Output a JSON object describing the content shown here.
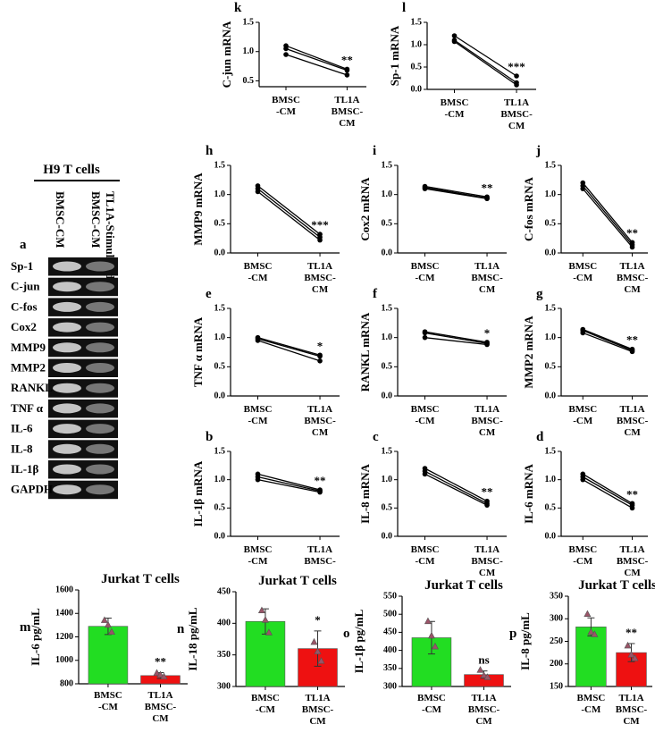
{
  "gel": {
    "panel": "a",
    "header": "H9 T cells",
    "columns": [
      [
        "BMSC-CM"
      ],
      [
        "TL1A-Stimulated",
        "BMSC-CM"
      ]
    ],
    "rows": [
      "Sp-1",
      "C-jun",
      "C-fos",
      "Cox2",
      "MMP9",
      "MMP2",
      "RANKL",
      "TNF α",
      "IL-6",
      "IL-8",
      "IL-1β",
      "GAPDH"
    ]
  },
  "chart_data": [
    {
      "type": "line",
      "panel": "k",
      "ylabel": "C-jun mRNA",
      "categories": [
        [
          "BMSC",
          "-CM"
        ],
        [
          "TL1A",
          "BMSC-",
          "CM"
        ]
      ],
      "series": [
        {
          "color": "#000000",
          "values": [
            1.1,
            0.7
          ]
        },
        {
          "color": "#000000",
          "values": [
            1.05,
            0.68
          ]
        },
        {
          "color": "#000000",
          "values": [
            0.95,
            0.6
          ]
        }
      ],
      "annotation": "**",
      "ylim": [
        0.4,
        1.5
      ],
      "yticks": [
        0.5,
        {
          "value": 1,
          "label": "1.0"
        },
        1.5
      ]
    },
    {
      "type": "line",
      "panel": "l",
      "ylabel": "Sp-1 mRNA",
      "categories": [
        [
          "BMSC",
          "-CM"
        ],
        [
          "TL1A",
          "BMSC-",
          "CM"
        ]
      ],
      "series": [
        {
          "color": "#000000",
          "values": [
            1.2,
            0.3
          ]
        },
        {
          "color": "#000000",
          "values": [
            1.1,
            0.15
          ]
        },
        {
          "color": "#000000",
          "values": [
            1.07,
            0.1
          ]
        }
      ],
      "annotation": "***",
      "ylim": [
        0,
        1.5
      ],
      "yticks": [
        {
          "value": 0,
          "label": "0.0"
        },
        0.5,
        {
          "value": 1,
          "label": "1.0"
        },
        1.5
      ]
    },
    {
      "type": "line",
      "panel": "h",
      "ylabel": "MMP9 mRNA",
      "categories": [
        [
          "BMSC",
          "-CM"
        ],
        [
          "TL1A",
          "BMSC-",
          "CM"
        ]
      ],
      "series": [
        {
          "color": "#000000",
          "values": [
            1.15,
            0.32
          ]
        },
        {
          "color": "#000000",
          "values": [
            1.1,
            0.27
          ]
        },
        {
          "color": "#000000",
          "values": [
            1.05,
            0.22
          ]
        }
      ],
      "annotation": "***",
      "ylim": [
        0,
        1.5
      ],
      "yticks": [
        {
          "value": 0,
          "label": "0.0"
        },
        0.5,
        {
          "value": 1,
          "label": "1.0"
        },
        1.5
      ]
    },
    {
      "type": "line",
      "panel": "i",
      "ylabel": "Cox2 mRNA",
      "categories": [
        [
          "BMSC",
          "-CM"
        ],
        [
          "TL1A",
          "BMSC-",
          "CM"
        ]
      ],
      "series": [
        {
          "color": "#000000",
          "values": [
            1.14,
            0.96
          ]
        },
        {
          "color": "#000000",
          "values": [
            1.12,
            0.94
          ]
        },
        {
          "color": "#000000",
          "values": [
            1.1,
            0.93
          ]
        }
      ],
      "annotation": "**",
      "ylim": [
        0,
        1.5
      ],
      "yticks": [
        {
          "value": 0,
          "label": "0.0"
        },
        0.5,
        {
          "value": 1,
          "label": "1.0"
        },
        1.5
      ]
    },
    {
      "type": "line",
      "panel": "j",
      "ylabel": "C-fos mRNA",
      "categories": [
        [
          "BMSC",
          "-CM"
        ],
        [
          "TL1A",
          "BMSC-",
          "CM"
        ]
      ],
      "series": [
        {
          "color": "#000000",
          "values": [
            1.2,
            0.18
          ]
        },
        {
          "color": "#000000",
          "values": [
            1.15,
            0.14
          ]
        },
        {
          "color": "#000000",
          "values": [
            1.1,
            0.1
          ]
        }
      ],
      "annotation": "**",
      "ylim": [
        0,
        1.5
      ],
      "yticks": [
        {
          "value": 0,
          "label": "0.0"
        },
        0.5,
        {
          "value": 1,
          "label": "1.0"
        },
        1.5
      ]
    },
    {
      "type": "line",
      "panel": "e",
      "ylabel": "TNF α mRNA",
      "categories": [
        [
          "BMSC",
          "-CM"
        ],
        [
          "TL1A",
          "BMSC-",
          "CM"
        ]
      ],
      "series": [
        {
          "color": "#000000",
          "values": [
            1.0,
            0.7
          ]
        },
        {
          "color": "#000000",
          "values": [
            0.98,
            0.68
          ]
        },
        {
          "color": "#000000",
          "values": [
            0.95,
            0.6
          ]
        }
      ],
      "annotation": "*",
      "ylim": [
        0,
        1.5
      ],
      "yticks": [
        {
          "value": 0,
          "label": "0.0"
        },
        0.5,
        {
          "value": 1,
          "label": "1.0"
        },
        1.5
      ]
    },
    {
      "type": "line",
      "panel": "f",
      "ylabel": "RANKL mRNA",
      "categories": [
        [
          "BMSC",
          "-CM"
        ],
        [
          "TL1A",
          "BMSC-",
          "CM"
        ]
      ],
      "series": [
        {
          "color": "#000000",
          "values": [
            1.1,
            0.92
          ]
        },
        {
          "color": "#000000",
          "values": [
            1.08,
            0.9
          ]
        },
        {
          "color": "#000000",
          "values": [
            1.0,
            0.88
          ]
        }
      ],
      "annotation": "*",
      "ylim": [
        0,
        1.5
      ],
      "yticks": [
        {
          "value": 0,
          "label": "0.0"
        },
        0.5,
        {
          "value": 1,
          "label": "1.0"
        },
        1.5
      ]
    },
    {
      "type": "line",
      "panel": "g",
      "ylabel": "MMP2 mRNA",
      "categories": [
        [
          "BMSC",
          "-CM"
        ],
        [
          "TL1A",
          "BMSC-",
          "CM"
        ]
      ],
      "series": [
        {
          "color": "#000000",
          "values": [
            1.14,
            0.8
          ]
        },
        {
          "color": "#000000",
          "values": [
            1.12,
            0.78
          ]
        },
        {
          "color": "#000000",
          "values": [
            1.08,
            0.76
          ]
        }
      ],
      "annotation": "**",
      "ylim": [
        0,
        1.5
      ],
      "yticks": [
        {
          "value": 0,
          "label": "0.0"
        },
        0.5,
        {
          "value": 1,
          "label": "1.0"
        },
        1.5
      ]
    },
    {
      "type": "line",
      "panel": "b",
      "ylabel": "IL-1β mRNA",
      "categories": [
        [
          "BMSC",
          "-CM"
        ],
        [
          "TL1A",
          "BMSC-"
        ]
      ],
      "series": [
        {
          "color": "#000000",
          "values": [
            1.1,
            0.82
          ]
        },
        {
          "color": "#000000",
          "values": [
            1.05,
            0.8
          ]
        },
        {
          "color": "#000000",
          "values": [
            1.0,
            0.78
          ]
        }
      ],
      "annotation": "**",
      "ylim": [
        0,
        1.5
      ],
      "yticks": [
        {
          "value": 0,
          "label": "0.0"
        },
        0.5,
        {
          "value": 1,
          "label": "1.0"
        },
        1.5
      ]
    },
    {
      "type": "line",
      "panel": "c",
      "ylabel": "IL-8 mRNA",
      "categories": [
        [
          "BMSC",
          "-CM"
        ],
        [
          "TL1A",
          "BMSC-",
          "CM"
        ]
      ],
      "series": [
        {
          "color": "#000000",
          "values": [
            1.2,
            0.62
          ]
        },
        {
          "color": "#000000",
          "values": [
            1.15,
            0.58
          ]
        },
        {
          "color": "#000000",
          "values": [
            1.1,
            0.55
          ]
        }
      ],
      "annotation": "**",
      "ylim": [
        0,
        1.5
      ],
      "yticks": [
        {
          "value": 0,
          "label": "0.0"
        },
        0.5,
        {
          "value": 1,
          "label": "1.0"
        },
        1.5
      ]
    },
    {
      "type": "line",
      "panel": "d",
      "ylabel": "IL-6 mRNA",
      "categories": [
        [
          "BMSC",
          "-CM"
        ],
        [
          "TL1A",
          "BMSC-",
          "CM"
        ]
      ],
      "series": [
        {
          "color": "#000000",
          "values": [
            1.1,
            0.58
          ]
        },
        {
          "color": "#000000",
          "values": [
            1.05,
            0.55
          ]
        },
        {
          "color": "#000000",
          "values": [
            1.0,
            0.5
          ]
        }
      ],
      "annotation": "**",
      "ylim": [
        0,
        1.5
      ],
      "yticks": [
        {
          "value": 0,
          "label": "0.0"
        },
        0.5,
        {
          "value": 1,
          "label": "1.0"
        },
        1.5
      ]
    },
    {
      "type": "bar",
      "panel": "m",
      "title": "Jurkat T cells",
      "ylabel": "IL-6 pg/mL",
      "categories": [
        [
          "BMSC",
          "-CM"
        ],
        [
          "TL1A",
          "BMSC-",
          "CM"
        ]
      ],
      "values": [
        1290,
        870
      ],
      "errors": [
        70,
        25
      ],
      "points": [
        [
          1340,
          1300,
          1240
        ],
        [
          890,
          875,
          860
        ]
      ],
      "colors": [
        "#22dd22",
        "#ee1111"
      ],
      "point_color": "#9b5468",
      "annotation": "**",
      "ylim": [
        800,
        1600
      ],
      "yticks": [
        800,
        1000,
        1200,
        1400,
        1600
      ]
    },
    {
      "type": "bar",
      "panel": "n",
      "title": "Jurkat T cells",
      "ylabel": "IL-18 pg/mL",
      "categories": [
        [
          "BMSC",
          "-CM"
        ],
        [
          "TL1A",
          "BMSC-",
          "CM"
        ]
      ],
      "values": [
        403,
        360
      ],
      "errors": [
        20,
        28
      ],
      "points": [
        [
          420,
          405,
          385
        ],
        [
          370,
          355,
          340
        ]
      ],
      "colors": [
        "#22dd22",
        "#ee1111"
      ],
      "point_color": "#9b5468",
      "annotation": "*",
      "ylim": [
        300,
        450
      ],
      "yticks": [
        300,
        350,
        400,
        450
      ]
    },
    {
      "type": "bar",
      "panel": "o",
      "title": "Jurkat T cells",
      "ylabel": "IL-1β pg/mL",
      "categories": [
        [
          "BMSC",
          "-CM"
        ],
        [
          "TL1A",
          "BMSC-",
          "CM"
        ]
      ],
      "values": [
        435,
        333
      ],
      "errors": [
        45,
        10
      ],
      "points": [
        [
          480,
          440,
          410
        ],
        [
          345,
          330,
          325
        ]
      ],
      "colors": [
        "#22dd22",
        "#ee1111"
      ],
      "point_color": "#9b5468",
      "annotation": "ns",
      "ylim": [
        300,
        550
      ],
      "yticks": [
        300,
        350,
        400,
        450,
        500,
        550
      ]
    },
    {
      "type": "bar",
      "panel": "p",
      "title": "Jurkat T cells",
      "ylabel": "IL-8 pg/mL",
      "categories": [
        [
          "BMSC",
          "-CM"
        ],
        [
          "TL1A",
          "BMSC-",
          "CM"
        ]
      ],
      "values": [
        282,
        225
      ],
      "errors": [
        20,
        20
      ],
      "points": [
        [
          310,
          270,
          265
        ],
        [
          240,
          220,
          212
        ]
      ],
      "colors": [
        "#22dd22",
        "#ee1111"
      ],
      "point_color": "#9b5468",
      "annotation": "**",
      "ylim": [
        150,
        350
      ],
      "yticks": [
        150,
        200,
        250,
        300,
        350
      ]
    }
  ]
}
